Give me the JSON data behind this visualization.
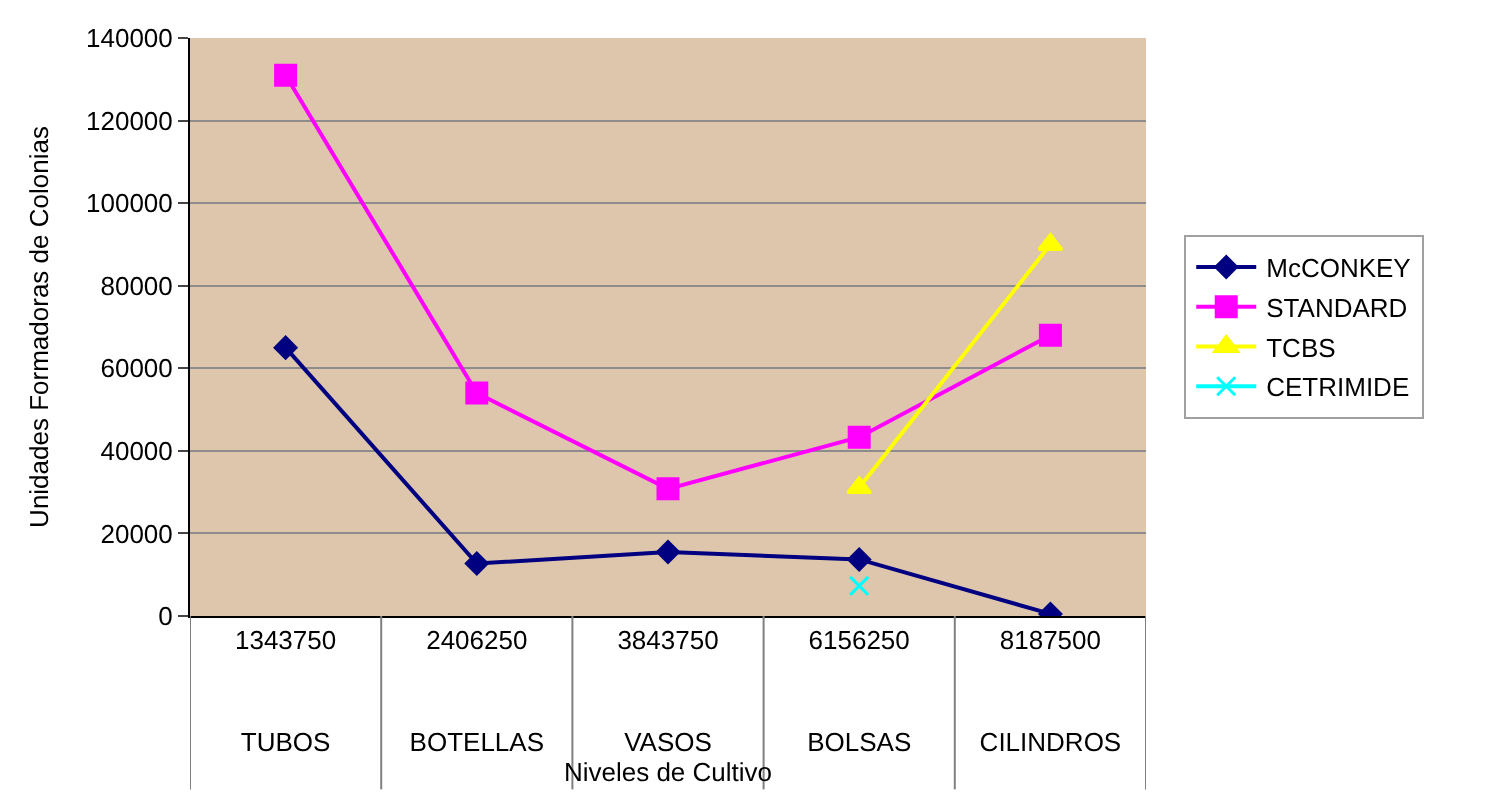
{
  "chart_data": {
    "type": "line",
    "xlabel": "Niveles de Cultivo",
    "ylabel": "Unidades Formadoras de Colonias",
    "categories": [
      "1343750\nTUBOS",
      "2406250\nBOTELLAS",
      "3843750\nVASOS",
      "6156250\nBOLSAS",
      "8187500\nCILINDROS"
    ],
    "series": [
      {
        "name": "McCONKEY",
        "color": "#000080",
        "marker": "diamond",
        "values": [
          65000,
          12700,
          15500,
          13700,
          500
        ]
      },
      {
        "name": "STANDARD",
        "color": "#ff00ff",
        "marker": "square",
        "values": [
          131000,
          54000,
          30800,
          43300,
          68000
        ]
      },
      {
        "name": "TCBS",
        "color": "#ffff00",
        "marker": "triangle",
        "values": [
          null,
          null,
          null,
          31100,
          90000
        ]
      },
      {
        "name": "CETRIMIDE",
        "color": "#00ffff",
        "marker": "cross",
        "values": [
          null,
          null,
          null,
          7300,
          null
        ]
      }
    ],
    "ylim": [
      0,
      140000
    ],
    "yticks": [
      0,
      20000,
      40000,
      60000,
      80000,
      100000,
      120000,
      140000
    ],
    "grid": "y",
    "legend": "right"
  }
}
